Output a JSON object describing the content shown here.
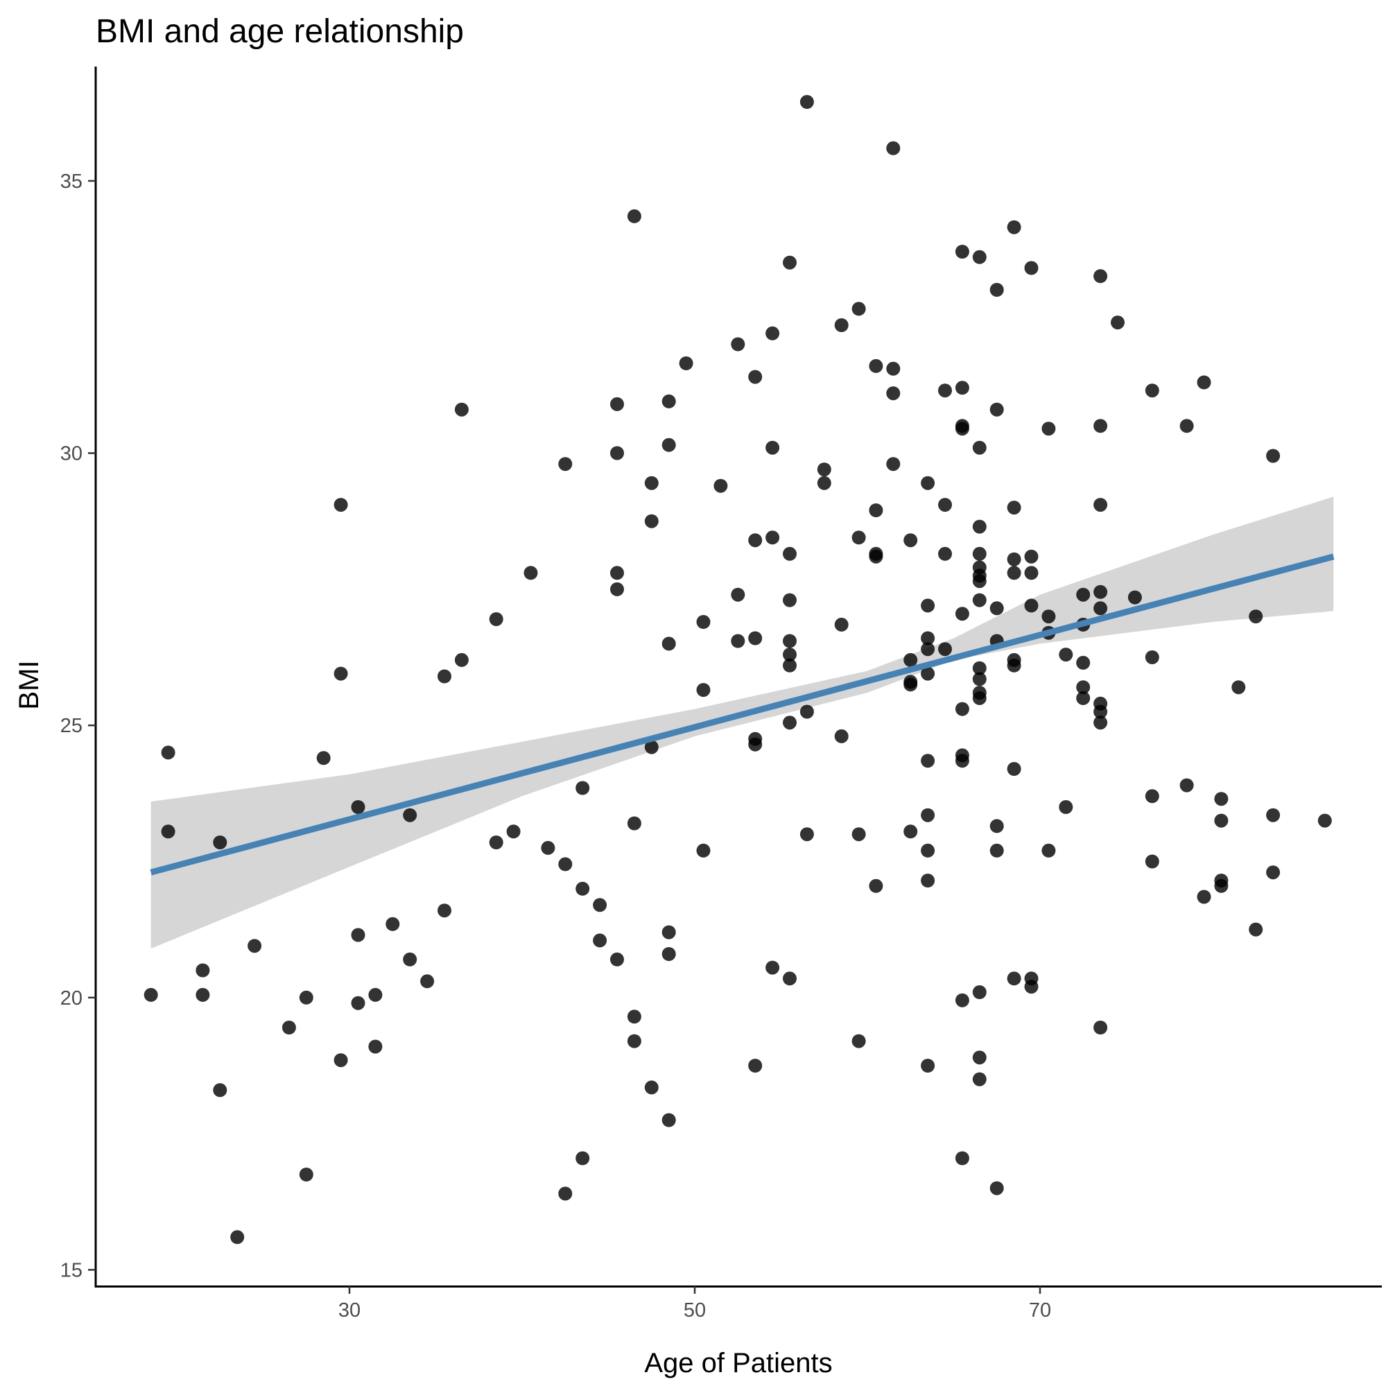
{
  "chart_data": {
    "type": "scatter",
    "title": "BMI and age relationship",
    "xlabel": "Age of Patients",
    "ylabel": "BMI",
    "xlim": [
      15.3,
      89.8
    ],
    "ylim": [
      14.7,
      37.1
    ],
    "xticks": [
      30,
      50,
      70
    ],
    "yticks": [
      15,
      20,
      25,
      30,
      35
    ],
    "grid": false,
    "legend": "none",
    "colors": {
      "points": "#000000",
      "fit_line": "#4682b4",
      "ci_band": "#999999"
    },
    "smooth": {
      "method": "linear",
      "line": [
        [
          18.5,
          22.3
        ],
        [
          87,
          28.1
        ]
      ],
      "ci_upper": [
        [
          18.5,
          23.6
        ],
        [
          30,
          24.1
        ],
        [
          40,
          24.7
        ],
        [
          50,
          25.3
        ],
        [
          60,
          26.0
        ],
        [
          65,
          26.6
        ],
        [
          70,
          27.4
        ],
        [
          80,
          28.5
        ],
        [
          87,
          29.2
        ]
      ],
      "ci_lower": [
        [
          18.5,
          20.9
        ],
        [
          30,
          22.4
        ],
        [
          40,
          23.7
        ],
        [
          50,
          24.8
        ],
        [
          60,
          25.6
        ],
        [
          65,
          26.2
        ],
        [
          70,
          26.5
        ],
        [
          80,
          26.9
        ],
        [
          87,
          27.1
        ]
      ]
    },
    "points": [
      [
        18.5,
        20.05
      ],
      [
        19.5,
        24.5
      ],
      [
        19.5,
        23.05
      ],
      [
        21.5,
        20.5
      ],
      [
        21.5,
        20.05
      ],
      [
        22.5,
        22.85
      ],
      [
        22.5,
        18.3
      ],
      [
        23.5,
        15.6
      ],
      [
        24.5,
        20.95
      ],
      [
        26.5,
        19.45
      ],
      [
        27.5,
        20.0
      ],
      [
        27.5,
        16.75
      ],
      [
        28.5,
        24.4
      ],
      [
        29.5,
        29.05
      ],
      [
        29.5,
        25.95
      ],
      [
        29.5,
        18.85
      ],
      [
        30.5,
        23.5
      ],
      [
        30.5,
        21.15
      ],
      [
        30.5,
        19.9
      ],
      [
        31.5,
        20.05
      ],
      [
        31.5,
        19.1
      ],
      [
        32.5,
        21.35
      ],
      [
        33.5,
        23.35
      ],
      [
        33.5,
        20.7
      ],
      [
        34.5,
        20.3
      ],
      [
        35.5,
        25.9
      ],
      [
        35.5,
        21.6
      ],
      [
        36.5,
        26.2
      ],
      [
        36.5,
        30.8
      ],
      [
        38.5,
        26.95
      ],
      [
        38.5,
        22.85
      ],
      [
        39.5,
        23.05
      ],
      [
        40.5,
        27.8
      ],
      [
        41.5,
        22.75
      ],
      [
        42.5,
        29.8
      ],
      [
        42.5,
        22.45
      ],
      [
        42.5,
        16.4
      ],
      [
        43.5,
        22.0
      ],
      [
        43.5,
        23.85
      ],
      [
        43.5,
        17.05
      ],
      [
        44.5,
        21.7
      ],
      [
        44.5,
        21.05
      ],
      [
        45.5,
        30.9
      ],
      [
        45.5,
        30.0
      ],
      [
        45.5,
        27.8
      ],
      [
        45.5,
        27.5
      ],
      [
        45.5,
        20.7
      ],
      [
        46.5,
        34.35
      ],
      [
        46.5,
        23.2
      ],
      [
        46.5,
        19.65
      ],
      [
        46.5,
        19.2
      ],
      [
        47.5,
        29.45
      ],
      [
        47.5,
        28.75
      ],
      [
        47.5,
        24.6
      ],
      [
        47.5,
        18.35
      ],
      [
        48.5,
        30.95
      ],
      [
        48.5,
        30.15
      ],
      [
        48.5,
        26.5
      ],
      [
        48.5,
        21.2
      ],
      [
        48.5,
        20.8
      ],
      [
        48.5,
        17.75
      ],
      [
        49.5,
        31.65
      ],
      [
        50.5,
        26.9
      ],
      [
        50.5,
        25.65
      ],
      [
        50.5,
        22.7
      ],
      [
        51.5,
        29.4
      ],
      [
        52.5,
        32.0
      ],
      [
        52.5,
        27.4
      ],
      [
        52.5,
        26.55
      ],
      [
        53.5,
        31.4
      ],
      [
        53.5,
        28.4
      ],
      [
        53.5,
        26.6
      ],
      [
        53.5,
        24.75
      ],
      [
        53.5,
        24.65
      ],
      [
        53.5,
        18.75
      ],
      [
        54.5,
        32.2
      ],
      [
        54.5,
        30.1
      ],
      [
        54.5,
        28.45
      ],
      [
        54.5,
        20.55
      ],
      [
        55.5,
        33.5
      ],
      [
        55.5,
        28.15
      ],
      [
        55.5,
        27.3
      ],
      [
        55.5,
        26.55
      ],
      [
        55.5,
        26.3
      ],
      [
        55.5,
        26.1
      ],
      [
        55.5,
        25.05
      ],
      [
        55.5,
        20.35
      ],
      [
        56.5,
        36.45
      ],
      [
        56.5,
        25.25
      ],
      [
        56.5,
        23.0
      ],
      [
        57.5,
        29.7
      ],
      [
        57.5,
        29.45
      ],
      [
        58.5,
        32.35
      ],
      [
        58.5,
        26.85
      ],
      [
        58.5,
        24.8
      ],
      [
        59.5,
        32.65
      ],
      [
        59.5,
        28.45
      ],
      [
        59.5,
        23.0
      ],
      [
        59.5,
        19.2
      ],
      [
        60.5,
        31.6
      ],
      [
        60.5,
        28.95
      ],
      [
        60.5,
        28.15
      ],
      [
        60.5,
        28.1
      ],
      [
        60.5,
        22.05
      ],
      [
        61.5,
        35.6
      ],
      [
        61.5,
        31.55
      ],
      [
        61.5,
        31.1
      ],
      [
        61.5,
        29.8
      ],
      [
        62.5,
        28.4
      ],
      [
        62.5,
        26.2
      ],
      [
        62.5,
        25.8
      ],
      [
        62.5,
        25.75
      ],
      [
        62.5,
        23.05
      ],
      [
        63.5,
        29.45
      ],
      [
        63.5,
        27.2
      ],
      [
        63.5,
        26.6
      ],
      [
        63.5,
        26.4
      ],
      [
        63.5,
        25.95
      ],
      [
        63.5,
        24.35
      ],
      [
        63.5,
        23.35
      ],
      [
        63.5,
        22.7
      ],
      [
        63.5,
        22.15
      ],
      [
        63.5,
        18.75
      ],
      [
        64.5,
        31.15
      ],
      [
        64.5,
        29.05
      ],
      [
        64.5,
        28.15
      ],
      [
        64.5,
        26.4
      ],
      [
        65.5,
        33.7
      ],
      [
        65.5,
        31.2
      ],
      [
        65.5,
        30.5
      ],
      [
        65.5,
        30.45
      ],
      [
        65.5,
        27.05
      ],
      [
        65.5,
        25.3
      ],
      [
        65.5,
        24.45
      ],
      [
        65.5,
        24.35
      ],
      [
        65.5,
        19.95
      ],
      [
        65.5,
        17.05
      ],
      [
        66.5,
        33.6
      ],
      [
        66.5,
        30.1
      ],
      [
        66.5,
        28.65
      ],
      [
        66.5,
        28.15
      ],
      [
        66.5,
        27.9
      ],
      [
        66.5,
        27.75
      ],
      [
        66.5,
        27.65
      ],
      [
        66.5,
        27.3
      ],
      [
        66.5,
        26.05
      ],
      [
        66.5,
        25.85
      ],
      [
        66.5,
        25.6
      ],
      [
        66.5,
        25.5
      ],
      [
        66.5,
        20.1
      ],
      [
        66.5,
        18.9
      ],
      [
        66.5,
        18.5
      ],
      [
        67.5,
        33.0
      ],
      [
        67.5,
        30.8
      ],
      [
        67.5,
        27.15
      ],
      [
        67.5,
        26.55
      ],
      [
        67.5,
        23.15
      ],
      [
        67.5,
        22.7
      ],
      [
        67.5,
        16.5
      ],
      [
        68.5,
        34.15
      ],
      [
        68.5,
        29.0
      ],
      [
        68.5,
        28.05
      ],
      [
        68.5,
        27.8
      ],
      [
        68.5,
        26.2
      ],
      [
        68.5,
        26.1
      ],
      [
        68.5,
        24.2
      ],
      [
        68.5,
        20.35
      ],
      [
        69.5,
        33.4
      ],
      [
        69.5,
        28.1
      ],
      [
        69.5,
        27.8
      ],
      [
        69.5,
        27.2
      ],
      [
        69.5,
        20.35
      ],
      [
        69.5,
        20.2
      ],
      [
        70.5,
        30.45
      ],
      [
        70.5,
        27.0
      ],
      [
        70.5,
        26.7
      ],
      [
        70.5,
        22.7
      ],
      [
        71.5,
        26.3
      ],
      [
        71.5,
        23.5
      ],
      [
        72.5,
        27.4
      ],
      [
        72.5,
        26.85
      ],
      [
        72.5,
        26.15
      ],
      [
        72.5,
        25.7
      ],
      [
        72.5,
        25.5
      ],
      [
        73.5,
        33.25
      ],
      [
        73.5,
        30.5
      ],
      [
        73.5,
        29.05
      ],
      [
        73.5,
        27.45
      ],
      [
        73.5,
        27.15
      ],
      [
        73.5,
        25.4
      ],
      [
        73.5,
        25.25
      ],
      [
        73.5,
        25.05
      ],
      [
        73.5,
        19.45
      ],
      [
        74.5,
        32.4
      ],
      [
        75.5,
        27.35
      ],
      [
        76.5,
        31.15
      ],
      [
        76.5,
        26.25
      ],
      [
        76.5,
        23.7
      ],
      [
        76.5,
        22.5
      ],
      [
        78.5,
        30.5
      ],
      [
        78.5,
        23.9
      ],
      [
        79.5,
        31.3
      ],
      [
        79.5,
        21.85
      ],
      [
        80.5,
        23.65
      ],
      [
        80.5,
        23.25
      ],
      [
        80.5,
        22.15
      ],
      [
        80.5,
        22.05
      ],
      [
        81.5,
        25.7
      ],
      [
        82.5,
        27.0
      ],
      [
        82.5,
        21.25
      ],
      [
        83.5,
        29.95
      ],
      [
        83.5,
        23.35
      ],
      [
        83.5,
        22.3
      ],
      [
        86.5,
        23.25
      ]
    ]
  }
}
